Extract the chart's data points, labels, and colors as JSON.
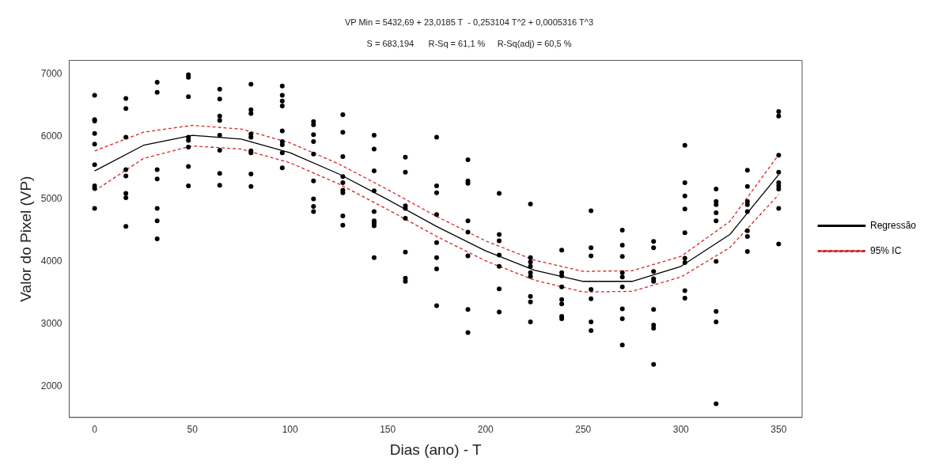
{
  "chart_data": {
    "type": "scatter",
    "title": "VP Min = 5432,69 + 23,0185 T  - 0,253104 T^2 + 0,0005316 T^3",
    "subtitle": "S = 683,194      R-Sq = 61,1 %     R-Sq(adj) = 60,5 %",
    "xlabel": "Dias (ano) - T",
    "ylabel": "Valor do Pixel (VP)",
    "xlim": [
      -13,
      362
    ],
    "xticks": [
      0,
      50,
      100,
      150,
      200,
      250,
      300,
      350
    ],
    "ylim": [
      1500,
      7220
    ],
    "yticks": [
      2000,
      3000,
      4000,
      5000,
      6000,
      7000
    ],
    "grid": false,
    "legend": "right",
    "series": [
      {
        "type": "scatter",
        "color": "#000000",
        "marker": "circle",
        "x": [
          0,
          0,
          0,
          0,
          0,
          0,
          0,
          0,
          0,
          16,
          16,
          16,
          16,
          16,
          16,
          16,
          16,
          32,
          32,
          32,
          32,
          32,
          32,
          32,
          48,
          48,
          48,
          48,
          48,
          48,
          48,
          48,
          64,
          64,
          64,
          64,
          64,
          64,
          64,
          64,
          80,
          80,
          80,
          80,
          80,
          80,
          80,
          80,
          80,
          96,
          96,
          96,
          96,
          96,
          96,
          96,
          96,
          96,
          112,
          112,
          112,
          112,
          112,
          112,
          112,
          112,
          112,
          127,
          127,
          127,
          127,
          127,
          127,
          127,
          127,
          127,
          143,
          143,
          143,
          143,
          143,
          143,
          143,
          143,
          143,
          159,
          159,
          159,
          159,
          159,
          159,
          159,
          159,
          175,
          175,
          175,
          175,
          175,
          175,
          175,
          175,
          191,
          191,
          191,
          191,
          191,
          191,
          191,
          191,
          207,
          207,
          207,
          207,
          207,
          207,
          207,
          223,
          223,
          223,
          223,
          223,
          223,
          223,
          223,
          223,
          239,
          239,
          239,
          239,
          239,
          239,
          239,
          239,
          254,
          254,
          254,
          254,
          254,
          254,
          254,
          270,
          270,
          270,
          270,
          270,
          270,
          270,
          270,
          270,
          286,
          286,
          286,
          286,
          286,
          286,
          286,
          286,
          286,
          302,
          302,
          302,
          302,
          302,
          302,
          302,
          302,
          302,
          318,
          318,
          318,
          318,
          318,
          318,
          318,
          318,
          318,
          334,
          334,
          334,
          334,
          334,
          334,
          334,
          334,
          350,
          350,
          350,
          350,
          350,
          350,
          350,
          350,
          350
        ],
        "values": [
          6660,
          6270,
          6250,
          6050,
          5880,
          5550,
          5210,
          5170,
          4850,
          6610,
          6450,
          5990,
          5470,
          5370,
          5090,
          5020,
          4560,
          6870,
          6710,
          5470,
          5320,
          4850,
          4650,
          4360,
          6990,
          6950,
          6640,
          5990,
          5940,
          5830,
          5520,
          5210,
          6760,
          6600,
          6330,
          6260,
          6020,
          5780,
          5410,
          5220,
          6840,
          6430,
          6370,
          6040,
          5990,
          5770,
          5740,
          5400,
          5200,
          6810,
          6660,
          6570,
          6490,
          6090,
          5920,
          5870,
          5740,
          5500,
          6240,
          6190,
          6030,
          5920,
          5720,
          5290,
          5000,
          4880,
          4800,
          6350,
          6070,
          5680,
          5360,
          5260,
          5140,
          5100,
          4730,
          4580,
          6020,
          5800,
          5450,
          5130,
          4800,
          4650,
          4610,
          4570,
          4060,
          5670,
          5430,
          4890,
          4850,
          4690,
          4150,
          3730,
          3680,
          5990,
          5210,
          5100,
          4750,
          4300,
          4060,
          3880,
          3290,
          5630,
          5290,
          5250,
          4650,
          4470,
          4090,
          3230,
          2860,
          5090,
          4430,
          4330,
          4100,
          3920,
          3560,
          3190,
          4920,
          4060,
          3990,
          3920,
          3820,
          3760,
          3440,
          3350,
          3030,
          4180,
          3820,
          3770,
          3590,
          3390,
          3320,
          3120,
          3080,
          4810,
          4220,
          4090,
          3550,
          3400,
          3030,
          2890,
          4500,
          4260,
          4080,
          3820,
          3750,
          3590,
          3240,
          3080,
          2660,
          4320,
          4220,
          3840,
          3720,
          3680,
          3230,
          2980,
          2930,
          2350,
          5860,
          5260,
          5050,
          4840,
          4460,
          4050,
          3980,
          3530,
          3410,
          5160,
          4960,
          4910,
          4780,
          4650,
          4000,
          3200,
          3030,
          1720,
          5460,
          5200,
          4960,
          4910,
          4800,
          4490,
          4400,
          4160,
          6400,
          6330,
          5700,
          5430,
          5260,
          5210,
          5160,
          4850,
          4280
        ]
      },
      {
        "type": "line",
        "name": "Regressão",
        "color": "#000000",
        "line_style": "solid",
        "marker": "none",
        "x": [
          0,
          25,
          50,
          75,
          100,
          125,
          150,
          175,
          200,
          225,
          250,
          275,
          300,
          325,
          350
        ],
        "values": [
          5450,
          5860,
          6020,
          5960,
          5740,
          5400,
          4990,
          4560,
          4170,
          3860,
          3680,
          3680,
          3920,
          4430,
          5390
        ]
      },
      {
        "type": "line",
        "name": "95% IC",
        "color": "#d62728",
        "line_style": "dashed",
        "marker": "none",
        "x": [
          0,
          25,
          50,
          75,
          100,
          125,
          150,
          175,
          200,
          225,
          250,
          275,
          300,
          325,
          350
        ],
        "values": [
          5770,
          6070,
          6180,
          6120,
          5900,
          5560,
          5150,
          4720,
          4330,
          4020,
          3840,
          3850,
          4080,
          4640,
          5710
        ]
      },
      {
        "type": "line",
        "color": "#d62728",
        "line_style": "dashed",
        "marker": "none",
        "x": [
          0,
          25,
          50,
          75,
          100,
          125,
          150,
          175,
          200,
          225,
          250,
          275,
          300,
          325,
          350
        ],
        "values": [
          5130,
          5650,
          5850,
          5800,
          5580,
          5240,
          4830,
          4400,
          4010,
          3700,
          3510,
          3520,
          3750,
          4220,
          5070
        ]
      }
    ]
  }
}
